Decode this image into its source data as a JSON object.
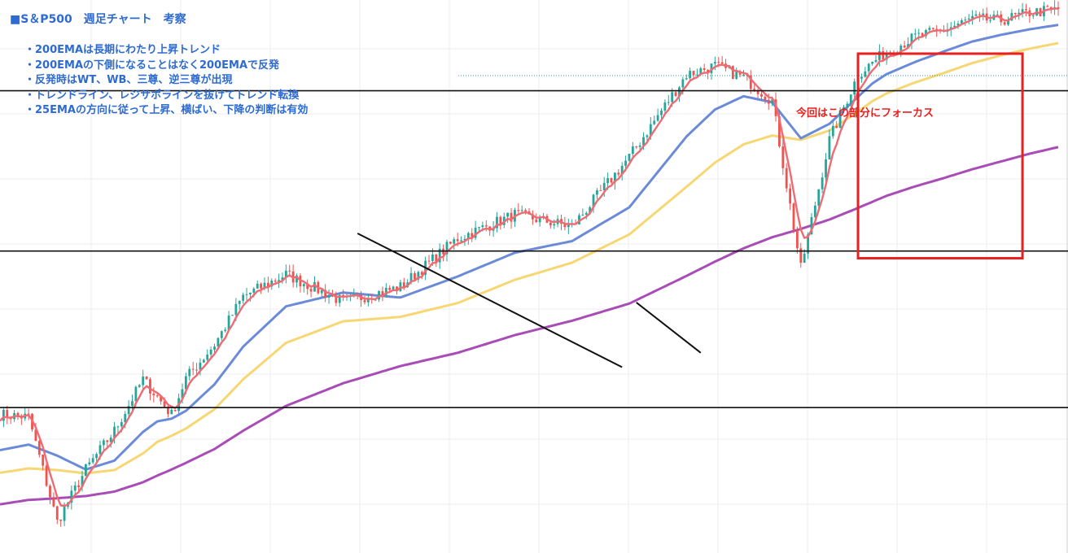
{
  "title": "■S＆P500　週足チャート　考察",
  "notes": [
    "・200EMAは長期にわたり上昇トレンド",
    "・200EMAの下側になることはなく200EMAで反発",
    "・反発時はWT、WB、三尊、逆三尊が出現",
    "・トレンドライン、レジサポラインを抜けてトレンド転換",
    "・25EMAの方向に従って上昇、横ばい、下降の判断は有効"
  ],
  "focus_label": "今回はこの部分にフォーカス",
  "colors": {
    "up": "#26a69a",
    "down": "#ef5350",
    "ema_fast": "#ef6b73",
    "ema_25": "#6b8bd9",
    "ema_50": "#f7d774",
    "ema_200": "#a94db6",
    "annotation_text": "#2e6bd0",
    "focus": "#e8201f",
    "line": "#111111",
    "grid": "#eeeeee"
  },
  "chart_data": {
    "type": "line",
    "title": "",
    "xlabel": "",
    "ylabel": "",
    "ylim": [
      0,
      100
    ],
    "x_unit": "weeks",
    "x": [
      0,
      8,
      16,
      24,
      32,
      40,
      44,
      48,
      52,
      60,
      68,
      80,
      96,
      112,
      128,
      144,
      160,
      176,
      192,
      200,
      208,
      216,
      224,
      232,
      240,
      244,
      248,
      256,
      264,
      272,
      280,
      288,
      296
    ],
    "series": [
      {
        "key": "price",
        "values": [
          25.0,
          24.6,
          5.6,
          15.1,
          22.1,
          31.4,
          28.2,
          25.0,
          31.6,
          37.7,
          46.4,
          50.4,
          45.4,
          48.1,
          56.9,
          61.2,
          59.0,
          71.6,
          86.5,
          88.1,
          86.0,
          81.8,
          51.4,
          74.7,
          86.5,
          88.7,
          90.6,
          93.3,
          94.6,
          96.6,
          96.3,
          97.7,
          98.3
        ]
      },
      {
        "key": "ema_25",
        "values": [
          18.6,
          19.6,
          17.6,
          15.1,
          16.7,
          21.9,
          23.8,
          24.3,
          25.7,
          30.5,
          37.3,
          44.6,
          47.1,
          46.2,
          50.0,
          54.3,
          56.4,
          62.5,
          75.3,
          80.2,
          82.6,
          81.5,
          75.0,
          77.6,
          82.5,
          84.9,
          86.6,
          88.8,
          90.7,
          92.5,
          93.7,
          94.7,
          95.5
        ]
      },
      {
        "key": "ema_50",
        "values": [
          14.5,
          15.3,
          15.0,
          14.4,
          15.0,
          18.0,
          20.1,
          21.2,
          22.5,
          26.0,
          31.4,
          38.0,
          41.9,
          42.7,
          45.2,
          49.4,
          52.5,
          57.6,
          66.2,
          70.6,
          73.9,
          75.5,
          74.7,
          76.4,
          79.8,
          81.7,
          83.1,
          85.1,
          86.8,
          88.6,
          90.0,
          91.2,
          92.2
        ]
      },
      {
        "key": "ema_200",
        "values": [
          8.8,
          9.6,
          9.9,
          10.3,
          11.1,
          12.8,
          14.0,
          15.1,
          16.3,
          18.8,
          22.1,
          26.6,
          30.7,
          33.8,
          36.2,
          39.4,
          42.0,
          45.1,
          50.1,
          52.7,
          55.1,
          57.1,
          58.6,
          60.3,
          62.4,
          63.5,
          64.6,
          66.3,
          67.8,
          69.4,
          70.8,
          72.2,
          73.4
        ]
      }
    ],
    "horizontal_lines": [
      26.3,
      54.6,
      83.6
    ],
    "trendlines": [
      [
        [
          100,
          57.8
        ],
        [
          174,
          33.6
        ]
      ],
      [
        [
          178,
          45.3
        ],
        [
          196,
          36.2
        ]
      ]
    ],
    "focus_region": {
      "x": [
        240,
        286
      ],
      "y": [
        53.3,
        90.3
      ]
    }
  }
}
